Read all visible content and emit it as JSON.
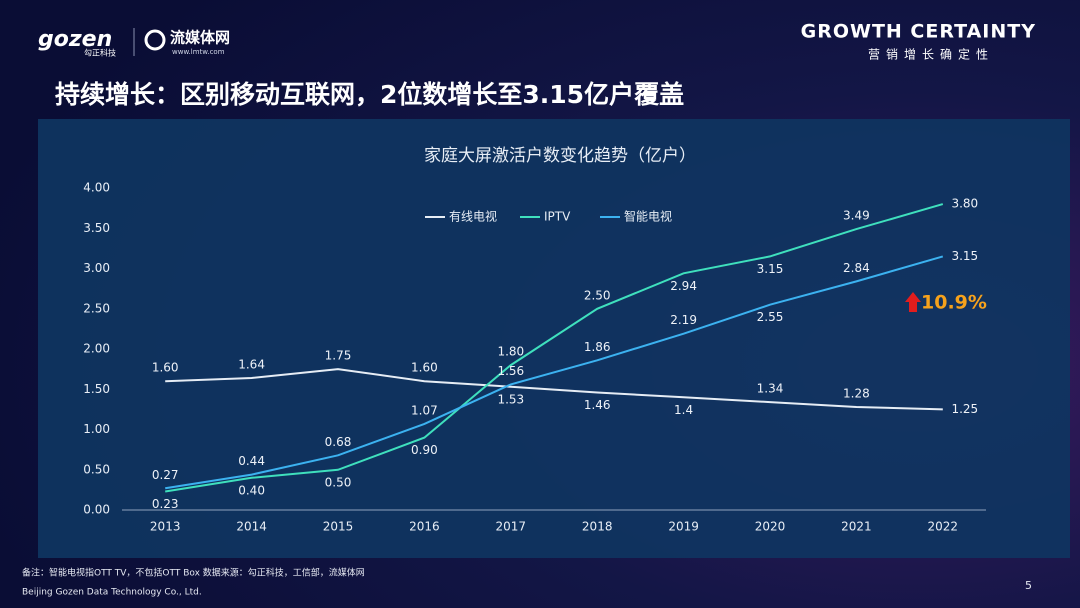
{
  "header": {
    "logo": "gozen",
    "logo_sub": "勾正科技",
    "partner": "流媒体网",
    "partner_url": "www.lmtw.com",
    "slogan": "GROWTH CERTAINTY",
    "slogan_sub": "营销增长确定性"
  },
  "slide_title": "持续增长：区别移动互联网，2位数增长至3.15亿户覆盖",
  "chart_data": {
    "type": "line",
    "title": "家庭大屏激活户数变化趋势（亿户）",
    "categories": [
      "2013",
      "2014",
      "2015",
      "2016",
      "2017",
      "2018",
      "2019",
      "2020",
      "2021",
      "2022"
    ],
    "series": [
      {
        "name": "有线电视",
        "color": "#e6edf5",
        "values": [
          1.6,
          1.64,
          1.75,
          1.6,
          1.53,
          1.46,
          1.4,
          1.34,
          1.28,
          1.25
        ],
        "value_labels": [
          "1.60",
          "1.64",
          "1.75",
          "1.60",
          "1.53",
          "1.46",
          "1.4",
          "1.34",
          "1.28",
          "1.25"
        ]
      },
      {
        "name": "IPTV",
        "color": "#3fe0bd",
        "values": [
          0.23,
          0.4,
          0.5,
          0.9,
          1.8,
          2.5,
          2.94,
          3.15,
          3.49,
          3.8
        ],
        "value_labels": [
          "0.23",
          "0.40",
          "0.50",
          "0.90",
          "1.80",
          "2.50",
          "2.94",
          "3.15",
          "3.49",
          "3.80"
        ]
      },
      {
        "name": "智能电视",
        "color": "#3cb2f0",
        "values": [
          0.27,
          0.44,
          0.68,
          1.07,
          1.56,
          1.86,
          2.19,
          2.55,
          2.84,
          3.15
        ],
        "value_labels": [
          "0.27",
          "0.44",
          "0.68",
          "1.07",
          "1.56",
          "1.86",
          "2.19",
          "2.55",
          "2.84",
          "3.15"
        ]
      }
    ],
    "ylim": [
      0,
      4
    ],
    "yticks": [
      {
        "value": 0,
        "label": "0.00"
      },
      {
        "value": 0.5,
        "label": "0.50"
      },
      {
        "value": 1,
        "label": "1.00"
      },
      {
        "value": 1.5,
        "label": "1.50"
      },
      {
        "value": 2,
        "label": "2.00"
      },
      {
        "value": 2.5,
        "label": "2.50"
      },
      {
        "value": 3,
        "label": "3.00"
      },
      {
        "value": 3.5,
        "label": "3.50"
      },
      {
        "value": 4,
        "label": "4.00"
      }
    ],
    "legend": "top",
    "annotation": "10.9%"
  },
  "footer": {
    "note": "备注：智能电视指OTT TV，不包括OTT Box 数据来源：勾正科技，工信部，流媒体网",
    "company": "Beijing Gozen Data Technology Co., Ltd.",
    "page": "5"
  }
}
